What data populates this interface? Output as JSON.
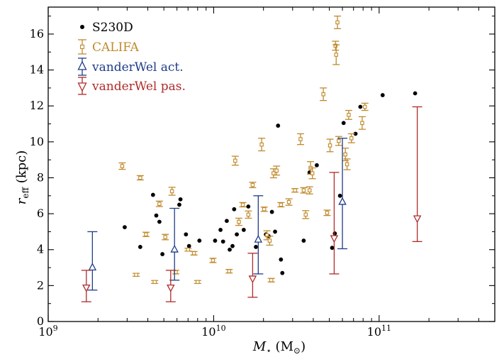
{
  "chart_data": {
    "type": "scatter",
    "title": "",
    "xscale": "log",
    "xlim": [
      1000000000,
      500000000000
    ],
    "ylim": [
      0,
      17.5
    ],
    "x_ticks": [
      {
        "value": 1000000000,
        "base": "10",
        "exp": "9"
      },
      {
        "value": 10000000000,
        "base": "10",
        "exp": "10"
      },
      {
        "value": 100000000000,
        "base": "10",
        "exp": "11"
      }
    ],
    "y_ticks": [
      0,
      2,
      4,
      6,
      8,
      10,
      12,
      14,
      16
    ],
    "xlabel": {
      "main": "M",
      "sub": "⋆",
      "unit_open": " (M",
      "unit_sub": "⊙",
      "unit_close": ")"
    },
    "ylabel": {
      "main": "r",
      "sub": "eff",
      "unit": " (kpc)"
    },
    "legend_position": "top-left",
    "series": [
      {
        "name": "S230D",
        "color": "#000000",
        "marker": "dot",
        "points": [
          [
            2900000000.0,
            5.25
          ],
          [
            3600000000.0,
            4.15
          ],
          [
            4300000000.0,
            7.05
          ],
          [
            4500000000.0,
            5.9
          ],
          [
            4700000000.0,
            5.55
          ],
          [
            4900000000.0,
            3.75
          ],
          [
            5800000000.0,
            3.95
          ],
          [
            6200000000.0,
            6.5
          ],
          [
            6300000000.0,
            6.8
          ],
          [
            6800000000.0,
            4.85
          ],
          [
            7100000000.0,
            4.2
          ],
          [
            8200000000.0,
            4.5
          ],
          [
            10200000000.0,
            4.5
          ],
          [
            11000000000.0,
            5.1
          ],
          [
            11400000000.0,
            4.45
          ],
          [
            12000000000.0,
            5.6
          ],
          [
            12500000000.0,
            4.0
          ],
          [
            13000000000.0,
            4.2
          ],
          [
            13300000000.0,
            6.25
          ],
          [
            13800000000.0,
            4.85
          ],
          [
            15200000000.0,
            5.1
          ],
          [
            16200000000.0,
            6.4
          ],
          [
            18000000000.0,
            4.15
          ],
          [
            20700000000.0,
            4.85
          ],
          [
            21500000000.0,
            4.75
          ],
          [
            22500000000.0,
            6.1
          ],
          [
            23500000000.0,
            5.0
          ],
          [
            24500000000.0,
            10.9
          ],
          [
            25500000000.0,
            3.45
          ],
          [
            26000000000.0,
            2.7
          ],
          [
            35000000000.0,
            4.5
          ],
          [
            38000000000.0,
            8.3
          ],
          [
            42000000000.0,
            8.7
          ],
          [
            52000000000.0,
            4.1
          ],
          [
            54000000000.0,
            4.9
          ],
          [
            58000000000.0,
            7.0
          ],
          [
            61000000000.0,
            11.05
          ],
          [
            72000000000.0,
            10.45
          ],
          [
            77000000000.0,
            11.95
          ],
          [
            105000000000.0,
            12.6
          ],
          [
            165000000000.0,
            12.7
          ]
        ]
      },
      {
        "name": "CALIFA",
        "color": "#c08a2c",
        "marker": "square-errorbar",
        "points": [
          [
            2800000000.0,
            8.65,
            0.18
          ],
          [
            3400000000.0,
            2.6,
            0.08
          ],
          [
            3600000000.0,
            8.0,
            0.12
          ],
          [
            3900000000.0,
            4.85,
            0.12
          ],
          [
            4400000000.0,
            2.2,
            0.08
          ],
          [
            4700000000.0,
            6.55,
            0.15
          ],
          [
            5100000000.0,
            4.7,
            0.15
          ],
          [
            5600000000.0,
            7.25,
            0.22
          ],
          [
            5900000000.0,
            2.75,
            0.1
          ],
          [
            7000000000.0,
            4.0,
            0.08
          ],
          [
            7600000000.0,
            3.8,
            0.1
          ],
          [
            8000000000.0,
            2.2,
            0.08
          ],
          [
            9900000000.0,
            3.4,
            0.12
          ],
          [
            12400000000.0,
            2.8,
            0.1
          ],
          [
            13500000000.0,
            8.95,
            0.25
          ],
          [
            14200000000.0,
            5.55,
            0.2
          ],
          [
            15000000000.0,
            6.5,
            0.12
          ],
          [
            16200000000.0,
            5.95,
            0.2
          ],
          [
            17200000000.0,
            7.6,
            0.15
          ],
          [
            19500000000.0,
            9.85,
            0.35
          ],
          [
            20200000000.0,
            6.25,
            0.12
          ],
          [
            21000000000.0,
            4.8,
            0.25
          ],
          [
            21800000000.0,
            4.5,
            0.25
          ],
          [
            22300000000.0,
            2.3,
            0.1
          ],
          [
            23000000000.0,
            8.25,
            0.25
          ],
          [
            24000000000.0,
            8.4,
            0.25
          ],
          [
            25500000000.0,
            6.5,
            0.12
          ],
          [
            28500000000.0,
            6.65,
            0.18
          ],
          [
            31000000000.0,
            7.3,
            0.1
          ],
          [
            33500000000.0,
            10.15,
            0.3
          ],
          [
            35000000000.0,
            7.3,
            0.15
          ],
          [
            36000000000.0,
            5.95,
            0.22
          ],
          [
            38000000000.0,
            7.3,
            0.2
          ],
          [
            38500000000.0,
            8.55,
            0.35
          ],
          [
            39500000000.0,
            8.25,
            0.3
          ],
          [
            46000000000.0,
            12.65,
            0.35
          ],
          [
            48500000000.0,
            6.05,
            0.15
          ],
          [
            50500000000.0,
            9.8,
            0.35
          ],
          [
            56000000000.0,
            16.65,
            0.35
          ],
          [
            54500000000.0,
            15.35,
            0.25
          ],
          [
            55000000000.0,
            14.85,
            0.55
          ],
          [
            57000000000.0,
            10.05,
            0.25
          ],
          [
            62500000000.0,
            9.3,
            0.35
          ],
          [
            64000000000.0,
            8.75,
            0.3
          ],
          [
            65500000000.0,
            11.5,
            0.25
          ],
          [
            68000000000.0,
            10.2,
            0.25
          ],
          [
            79000000000.0,
            11.05,
            0.35
          ],
          [
            82000000000.0,
            11.95,
            0.2
          ]
        ]
      },
      {
        "name": "vanderWel act.",
        "color": "#1f3c88",
        "marker": "triangle-up",
        "points": [
          [
            1850000000.0,
            3.0,
            1.75,
            5.0
          ],
          [
            5800000000.0,
            4.0,
            2.3,
            6.3
          ],
          [
            18600000000.0,
            4.55,
            2.65,
            7.0
          ],
          [
            60000000000.0,
            6.65,
            4.05,
            10.2
          ]
        ]
      },
      {
        "name": "vanderWel pas.",
        "color": "#b02a2a",
        "marker": "triangle-down",
        "points": [
          [
            1700000000.0,
            1.9,
            1.1,
            2.85
          ],
          [
            5500000000.0,
            1.9,
            1.1,
            2.85
          ],
          [
            17200000000.0,
            2.4,
            1.35,
            3.8
          ],
          [
            53500000000.0,
            4.65,
            2.65,
            8.3
          ],
          [
            170000000000.0,
            5.75,
            4.45,
            11.95
          ]
        ]
      }
    ]
  }
}
